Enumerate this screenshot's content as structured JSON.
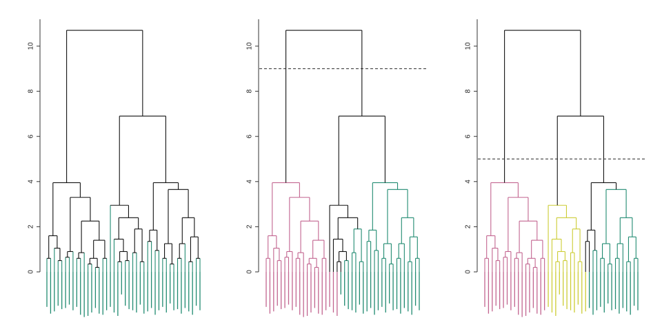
{
  "chart_data": [
    {
      "type": "dendrogram",
      "title": "",
      "ylim": [
        0,
        11
      ],
      "yticks": [
        0,
        2,
        4,
        6,
        8,
        10
      ],
      "tick_labels": [
        "0",
        "2",
        "4",
        "6",
        "8",
        "10"
      ],
      "cut_height": null,
      "cluster_sizes": [
        45
      ],
      "cluster_colors": [
        "#1f8a70"
      ]
    },
    {
      "type": "dendrogram",
      "title": "",
      "ylim": [
        0,
        11
      ],
      "yticks": [
        0,
        2,
        4,
        6,
        8,
        10
      ],
      "tick_labels": [
        "0",
        "2",
        "4",
        "6",
        "8",
        "10"
      ],
      "cut_height": 9.0,
      "cluster_sizes": [
        20,
        25
      ],
      "cluster_colors": [
        "#c2648f",
        "#1f8a70"
      ]
    },
    {
      "type": "dendrogram",
      "title": "",
      "ylim": [
        0,
        11
      ],
      "yticks": [
        0,
        2,
        4,
        6,
        8,
        10
      ],
      "tick_labels": [
        "0",
        "2",
        "4",
        "6",
        "8",
        "10"
      ],
      "cut_height": 5.0,
      "cluster_sizes": [
        17,
        11,
        17
      ],
      "cluster_colors": [
        "#c2648f",
        "#cccc33",
        "#1f8a70"
      ]
    }
  ],
  "dendrogram": {
    "merge_heights": {
      "root": 10.7,
      "left_top": 3.95,
      "right_top": 6.9,
      "right_middle": 2.95,
      "right_right": 3.95
    }
  }
}
